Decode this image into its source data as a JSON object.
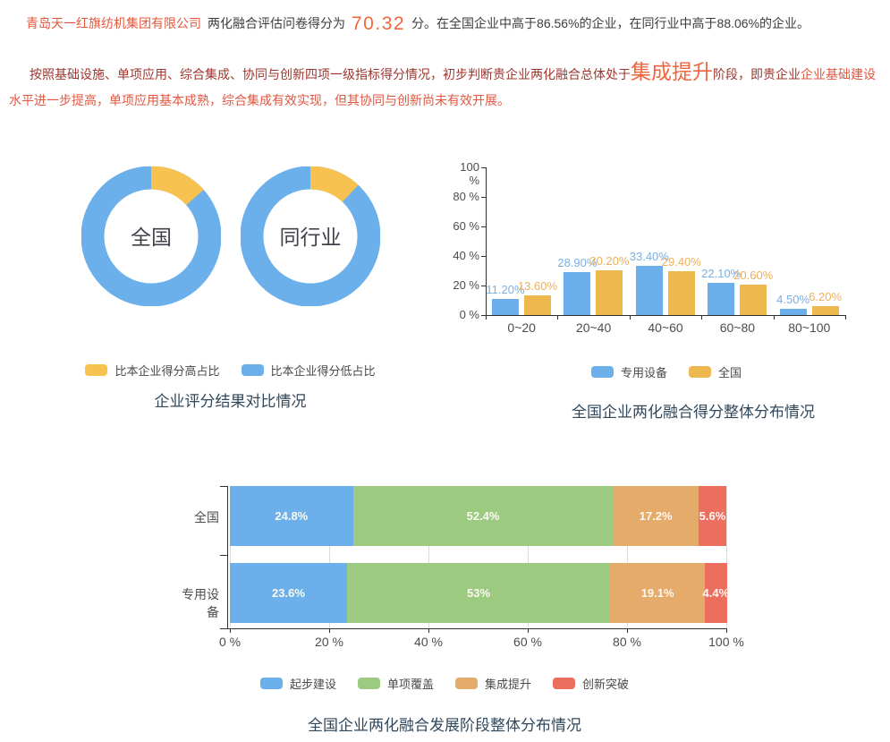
{
  "report": {
    "company": "青岛天一红旗纺机集团有限公司",
    "score_prefix": "两化融合评估问卷得分为",
    "score": "70.32",
    "score_suffix": "分。在全国企业中高于86.56%的企业，在同行业中高于88.06%的企业。",
    "stage_intro": "按照基础设施、单项应用、综合集成、协同与创新四项一级指标得分情况，初步判断贵企业两化融合总体处于",
    "stage_name": "集成提升",
    "stage_mid": "阶段，即贵企业",
    "stage_detail": "企业基础建设水平进一步提高，单项应用基本成熟，综合集成有效实现，但其协同与创新尚未有效开展。"
  },
  "colors": {
    "blue": "#6CB0EB",
    "donut_yellow": "#F7C24F",
    "bar_yellow": "#EDB94F",
    "green": "#9BCA80",
    "stack_orange": "#E5AB6B",
    "red": "#EC6E5F",
    "title_navy": "#31485C",
    "axis_text": "#4D4D4D",
    "highlight_red": "#E25740",
    "dark_red": "#9E352E"
  },
  "chart_data": [
    {
      "type": "pie",
      "subtype": "donut-pair",
      "title": "企业评分结果对比情况",
      "legend": [
        {
          "label": "比本企业得分高占比",
          "color": "#F7C24F"
        },
        {
          "label": "比本企业得分低占比",
          "color": "#6CB0EB"
        }
      ],
      "donuts": [
        {
          "label": "全国",
          "slices": [
            {
              "name": "比本企业得分高占比",
              "value": 13.44,
              "color": "#F7C24F"
            },
            {
              "name": "比本企业得分低占比",
              "value": 86.56,
              "color": "#6CB0EB"
            }
          ]
        },
        {
          "label": "同行业",
          "slices": [
            {
              "name": "比本企业得分高占比",
              "value": 11.94,
              "color": "#F7C24F"
            },
            {
              "name": "比本企业得分低占比",
              "value": 88.06,
              "color": "#6CB0EB"
            }
          ]
        }
      ]
    },
    {
      "type": "bar",
      "title": "全国企业两化融合得分整体分布情况",
      "categories": [
        "0~20",
        "20~40",
        "40~60",
        "60~80",
        "80~100"
      ],
      "series": [
        {
          "name": "专用设备",
          "color": "#6CB0EB",
          "label_color": "#7AAFE4",
          "values": [
            11.2,
            28.9,
            33.4,
            22.1,
            4.5
          ],
          "labels": [
            "11.20%",
            "28.90%",
            "33.40%",
            "22.10%",
            "4.50%"
          ]
        },
        {
          "name": "全国",
          "color": "#EDB94F",
          "label_color": "#EDB05C",
          "values": [
            13.6,
            30.2,
            29.4,
            20.6,
            6.2
          ],
          "labels": [
            "13.60%",
            "30.20%",
            "29.40%",
            "20.60%",
            "6.20%"
          ]
        }
      ],
      "y_ticks": [
        "0 %",
        "20 %",
        "40 %",
        "60 %",
        "80 %",
        "100 %"
      ],
      "ylim": [
        0,
        100
      ],
      "grid": false,
      "legend_position": "bottom"
    },
    {
      "type": "stacked-bar",
      "orientation": "horizontal",
      "title": "全国企业两化融合发展阶段整体分布情况",
      "categories": [
        "全国",
        "专用设备"
      ],
      "series": [
        {
          "name": "起步建设",
          "color": "#6CB0EB",
          "values": [
            24.8,
            23.6
          ],
          "labels": [
            "24.8%",
            "23.6%"
          ]
        },
        {
          "name": "单项覆盖",
          "color": "#9BCA80",
          "values": [
            52.4,
            53
          ],
          "labels": [
            "52.4%",
            "53%"
          ]
        },
        {
          "name": "集成提升",
          "color": "#E5AB6B",
          "values": [
            17.2,
            19.1
          ],
          "labels": [
            "17.2%",
            "19.1%"
          ]
        },
        {
          "name": "创新突破",
          "color": "#EC6E5F",
          "values": [
            5.6,
            4.4
          ],
          "labels": [
            "5.6%",
            "4.4%"
          ]
        }
      ],
      "x_ticks": [
        "0 %",
        "20 %",
        "40 %",
        "60 %",
        "80 %",
        "100 %"
      ],
      "xlim": [
        0,
        100
      ],
      "grid": true,
      "legend_position": "bottom"
    }
  ]
}
